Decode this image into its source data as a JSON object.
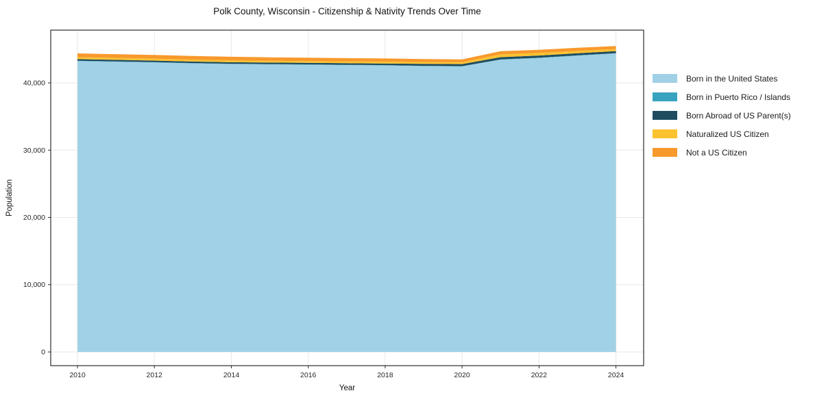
{
  "chart_data": {
    "type": "area",
    "stacked": true,
    "title": "Polk County, Wisconsin - Citizenship & Nativity Trends Over Time",
    "xlabel": "Year",
    "ylabel": "Population",
    "x": [
      2010,
      2011,
      2012,
      2013,
      2014,
      2015,
      2016,
      2017,
      2018,
      2019,
      2020,
      2021,
      2022,
      2023,
      2024
    ],
    "series": [
      {
        "name": "Born in the United States",
        "color": "#a1d1e6",
        "values": [
          43250,
          43150,
          43050,
          42900,
          42800,
          42750,
          42700,
          42650,
          42600,
          42500,
          42450,
          43450,
          43700,
          44050,
          44380
        ]
      },
      {
        "name": "Born in Puerto Rico / Islands",
        "color": "#38a3be",
        "values": [
          40,
          40,
          40,
          40,
          40,
          40,
          40,
          40,
          40,
          40,
          40,
          40,
          40,
          40,
          40
        ]
      },
      {
        "name": "Born Abroad of US Parent(s)",
        "color": "#204c60",
        "values": [
          230,
          230,
          225,
          230,
          230,
          225,
          230,
          235,
          240,
          280,
          300,
          330,
          320,
          310,
          300
        ]
      },
      {
        "name": "Naturalized US Citizen",
        "color": "#fcc230",
        "values": [
          300,
          295,
          290,
          280,
          270,
          265,
          270,
          270,
          275,
          275,
          280,
          420,
          400,
          350,
          310
        ]
      },
      {
        "name": "Not a US Citizen",
        "color": "#f8992c",
        "values": [
          560,
          555,
          550,
          545,
          540,
          520,
          500,
          480,
          470,
          450,
          420,
          460,
          460,
          460,
          450
        ]
      }
    ],
    "xticks": {
      "values": [
        2010,
        2012,
        2014,
        2016,
        2018,
        2020,
        2022,
        2024
      ],
      "labels": [
        "2010",
        "2012",
        "2014",
        "2016",
        "2018",
        "2020",
        "2022",
        "2024"
      ]
    },
    "yticks": {
      "values": [
        0,
        10000,
        20000,
        30000,
        40000
      ],
      "labels": [
        "0",
        "10,000",
        "20,000",
        "30,000",
        "40,000"
      ]
    },
    "xlim": [
      2009.305,
      2024.72
    ],
    "ylim": [
      -2040,
      47840
    ],
    "grid": true,
    "legend_position": "right",
    "theme": {
      "grid": "#e7e7e7",
      "frame": "#2b2b2b",
      "text": "#262626",
      "background": "#ffffff"
    }
  }
}
